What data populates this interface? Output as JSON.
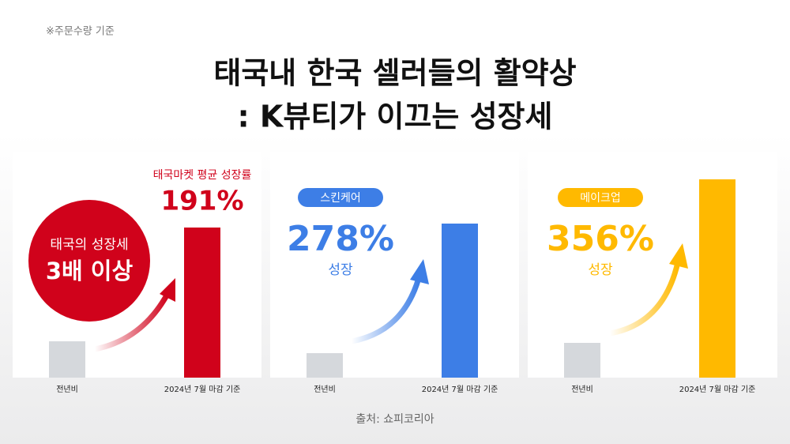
{
  "note": "※주문수량 기준",
  "title": [
    "태국내 한국 셀러들의 활약상",
    ": K뷰티가 이끄는 성장세"
  ],
  "source": "출처: 쇼피코리아",
  "chart_data": [
    {
      "type": "bar",
      "categories": [
        "전년비",
        "2024년 7월 마감 기준"
      ],
      "values": [
        46,
        190
      ],
      "colors": [
        "#d5d8dc",
        "#d0021b"
      ],
      "ylim": [
        0,
        260
      ],
      "annotations": [
        "태국마켓 평균 성장률",
        "191%",
        "태국의 성장세",
        "3배 이상"
      ]
    },
    {
      "type": "bar",
      "categories": [
        "전년비",
        "2024년 7월 마감 기준"
      ],
      "values": [
        31,
        195
      ],
      "colors": [
        "#d5d8dc",
        "#3d7ee6"
      ],
      "ylim": [
        0,
        260
      ],
      "annotations": [
        "스킨케어",
        "278%",
        "성장"
      ]
    },
    {
      "type": "bar",
      "categories": [
        "전년비",
        "2024년 7월 마감 기준"
      ],
      "values": [
        44,
        251
      ],
      "colors": [
        "#d5d8dc",
        "#ffb900"
      ],
      "ylim": [
        0,
        260
      ],
      "annotations": [
        "메이크업",
        "356%",
        "성장"
      ]
    }
  ]
}
